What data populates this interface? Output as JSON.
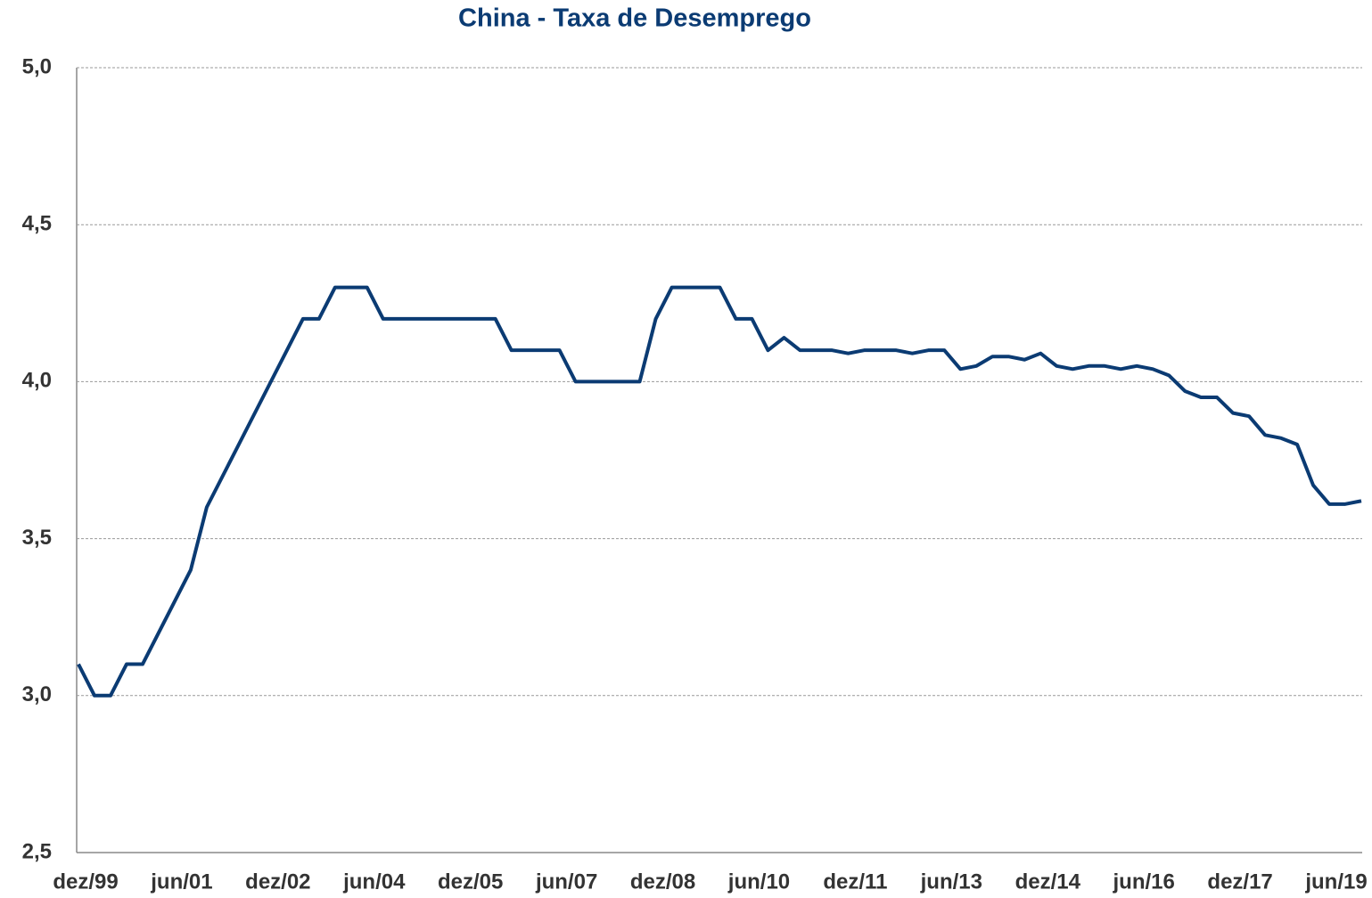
{
  "chart_data": {
    "type": "line",
    "title": "China - Taxa de Desemprego",
    "categories": [
      "dez/99",
      null,
      null,
      null,
      null,
      null,
      "jun/01",
      null,
      null,
      null,
      null,
      null,
      "dez/02",
      null,
      null,
      null,
      null,
      null,
      "jun/04",
      null,
      null,
      null,
      null,
      null,
      "dez/05",
      null,
      null,
      null,
      null,
      null,
      "jun/07",
      null,
      null,
      null,
      null,
      null,
      "dez/08",
      null,
      null,
      null,
      null,
      null,
      "jun/10",
      null,
      null,
      null,
      null,
      null,
      "dez/11",
      null,
      null,
      null,
      null,
      null,
      "jun/13",
      null,
      null,
      null,
      null,
      null,
      "dez/14",
      null,
      null,
      null,
      null,
      null,
      "jun/16",
      null,
      null,
      null,
      null,
      null,
      "dez/17",
      null,
      null,
      null,
      null,
      null,
      "jun/19",
      null,
      null
    ],
    "series": [
      {
        "name": "Taxa de Desemprego",
        "color": "#0b3b73",
        "values": [
          3.1,
          3.0,
          3.0,
          3.1,
          3.1,
          3.2,
          3.3,
          3.4,
          3.6,
          3.7,
          3.8,
          3.9,
          4.0,
          4.1,
          4.2,
          4.2,
          4.3,
          4.3,
          4.3,
          4.2,
          4.2,
          4.2,
          4.2,
          4.2,
          4.2,
          4.2,
          4.2,
          4.1,
          4.1,
          4.1,
          4.1,
          4.0,
          4.0,
          4.0,
          4.0,
          4.0,
          4.2,
          4.3,
          4.3,
          4.3,
          4.3,
          4.2,
          4.2,
          4.1,
          4.14,
          4.1,
          4.1,
          4.1,
          4.09,
          4.1,
          4.1,
          4.1,
          4.09,
          4.1,
          4.1,
          4.04,
          4.05,
          4.08,
          4.08,
          4.07,
          4.09,
          4.05,
          4.04,
          4.05,
          4.05,
          4.04,
          4.05,
          4.04,
          4.02,
          3.97,
          3.95,
          3.95,
          3.9,
          3.89,
          3.83,
          3.82,
          3.8,
          3.67,
          3.61,
          3.61,
          3.62
        ]
      }
    ],
    "ylim": [
      2.5,
      5.0
    ],
    "yticks": [
      {
        "value": 2.5,
        "label": "2,5"
      },
      {
        "value": 3.0,
        "label": "3,0"
      },
      {
        "value": 3.5,
        "label": "3,5"
      },
      {
        "value": 4.0,
        "label": "4,0"
      },
      {
        "value": 4.5,
        "label": "4,5"
      },
      {
        "value": 5.0,
        "label": "5,0"
      }
    ],
    "grid": true
  }
}
